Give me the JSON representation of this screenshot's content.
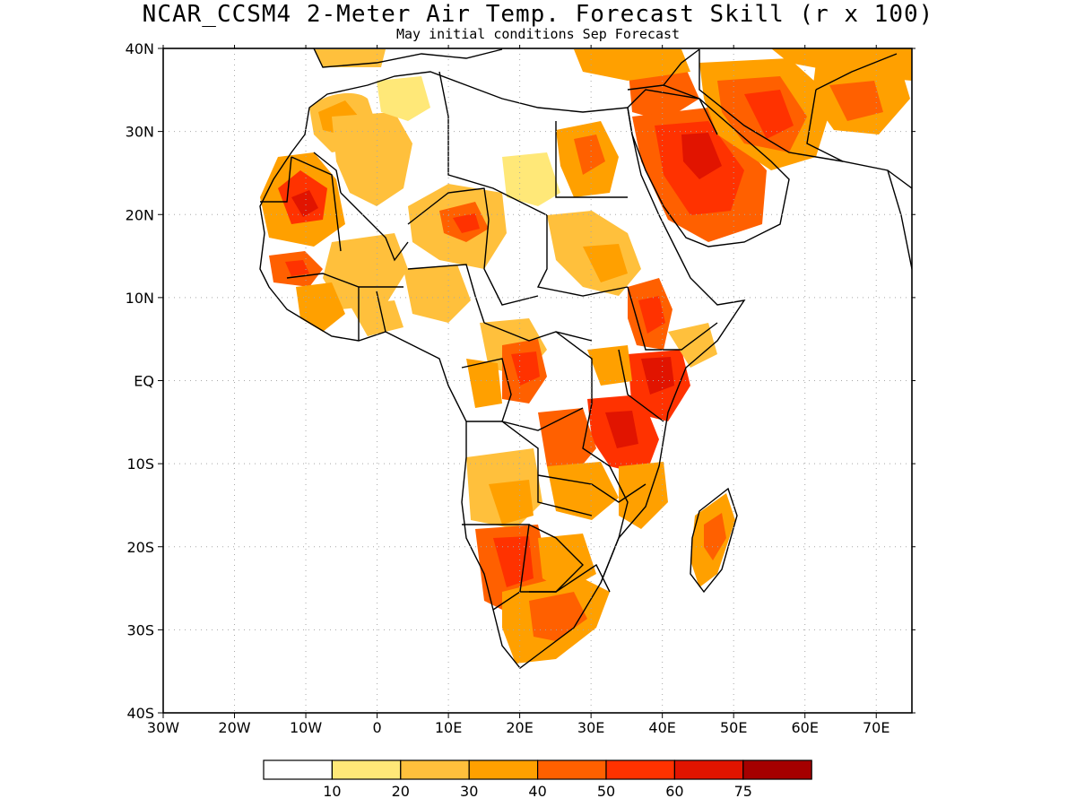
{
  "header": {
    "title": "NCAR_CCSM4 2-Meter Air Temp. Forecast Skill (r x 100)",
    "subtitle": "May initial conditions  Sep Forecast"
  },
  "axes": {
    "lon_ticks": [
      "30W",
      "20W",
      "10W",
      "0",
      "10E",
      "20E",
      "30E",
      "40E",
      "50E",
      "60E",
      "70E"
    ],
    "lat_ticks": [
      "40N",
      "30N",
      "20N",
      "10N",
      "EQ",
      "10S",
      "20S",
      "30S",
      "40S"
    ],
    "lon_range": [
      -30,
      75
    ],
    "lat_range": [
      -40,
      40
    ]
  },
  "legend": {
    "levels": [
      "10",
      "20",
      "30",
      "40",
      "50",
      "60",
      "75"
    ],
    "colors": [
      "#ffffff",
      "#ffe878",
      "#ffc03c",
      "#ffa000",
      "#ff6000",
      "#ff3200",
      "#e11400",
      "#a50000"
    ]
  },
  "map": {
    "land_color": "#ffffff",
    "ocean_color": "#ffffff",
    "border_color": "#000000",
    "grid": "dotted"
  }
}
